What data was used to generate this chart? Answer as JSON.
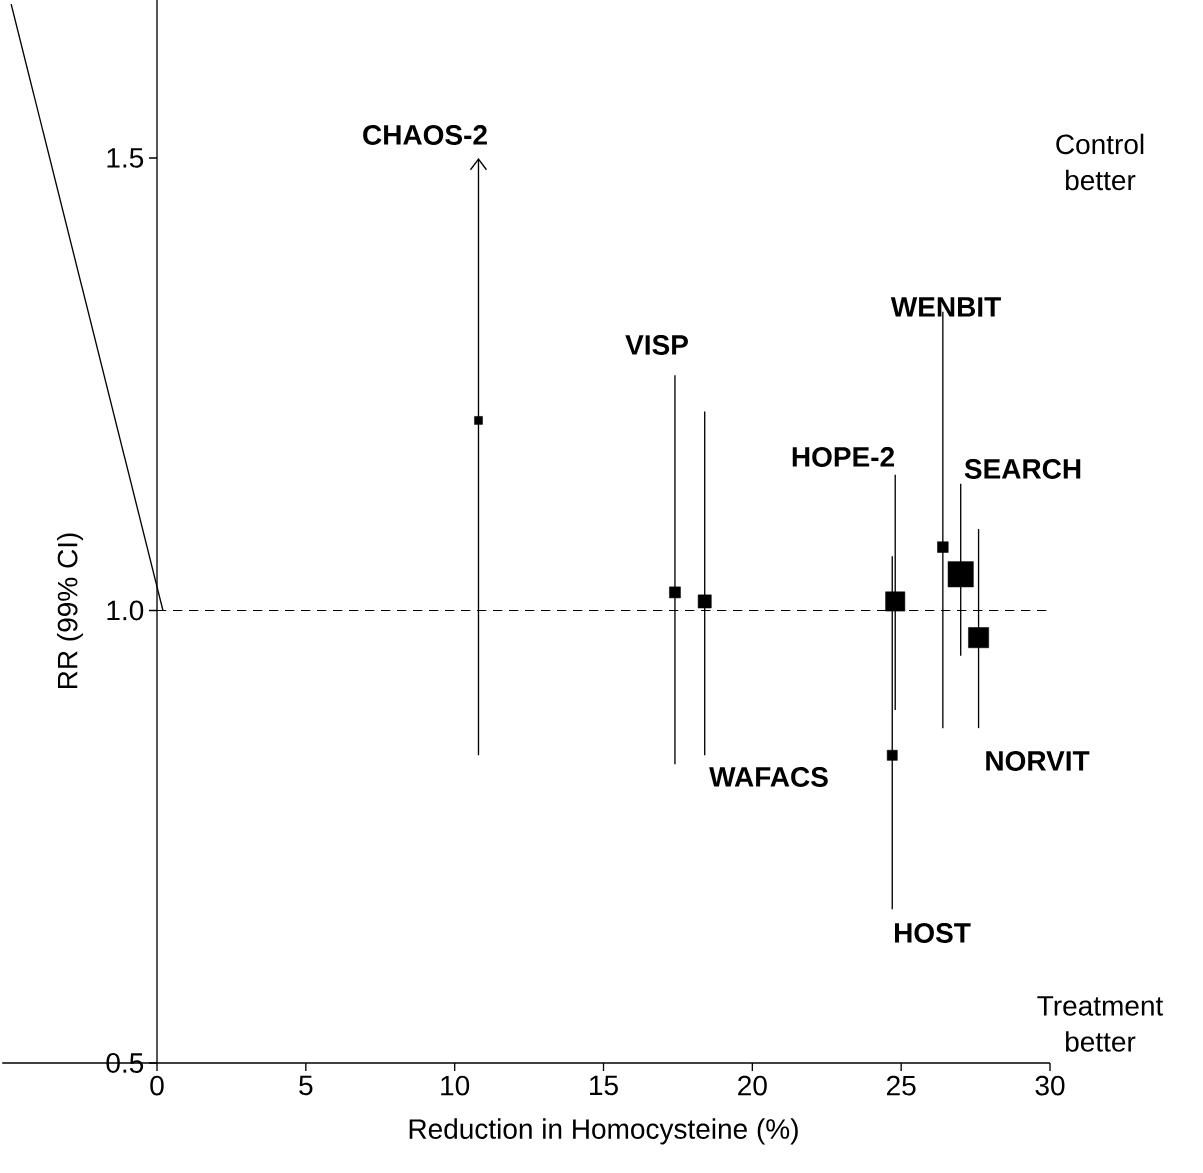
{
  "chart_data": {
    "type": "bubble",
    "xlabel": "Reduction in Homocysteine (%)",
    "ylabel": "RR (99% CI)",
    "xlim": [
      -5.2,
      30
    ],
    "ylim": [
      0.5,
      1.675
    ],
    "xticks": [
      0,
      5,
      10,
      15,
      20,
      25,
      30
    ],
    "yticks": [
      {
        "value": 0.5,
        "label": "0.5"
      },
      {
        "value": 1,
        "label": "1.0"
      },
      {
        "value": 1.5,
        "label": "1.5"
      }
    ],
    "series": [
      {
        "color": "#000000",
        "marker": "square",
        "x": [
          10.8,
          17.4,
          18.4,
          24.8,
          24.7,
          26.4,
          27.0,
          27.6
        ],
        "values": [
          1.21,
          1.02,
          1.01,
          1.01,
          0.84,
          1.07,
          1.04,
          0.97
        ],
        "sizes": [
          0.1,
          0.19,
          0.27,
          0.58,
          0.16,
          0.18,
          1,
          0.64
        ],
        "errors": [
          [
            0.84,
            1.5
          ],
          [
            0.83,
            1.26
          ],
          [
            0.84,
            1.22
          ],
          [
            0.89,
            1.15
          ],
          [
            0.67,
            1.06
          ],
          [
            0.87,
            1.33
          ],
          [
            0.95,
            1.14
          ],
          [
            0.87,
            1.09
          ]
        ]
      },
      {
        "type": "line",
        "color": "#000000",
        "x": [
          -4.9,
          0.2
        ],
        "values": [
          1.67,
          1.0
        ]
      }
    ],
    "ref_lines": [
      {
        "axis": "y",
        "value": 1,
        "line_style": "dashed",
        "color": "#000000"
      }
    ],
    "annotations": [
      "CHAOS-2",
      "VISP",
      "WAFACS",
      "HOPE-2",
      "HOST",
      "WENBIT",
      "SEARCH",
      "NORVIT",
      "Control better",
      "Treatment better"
    ]
  }
}
